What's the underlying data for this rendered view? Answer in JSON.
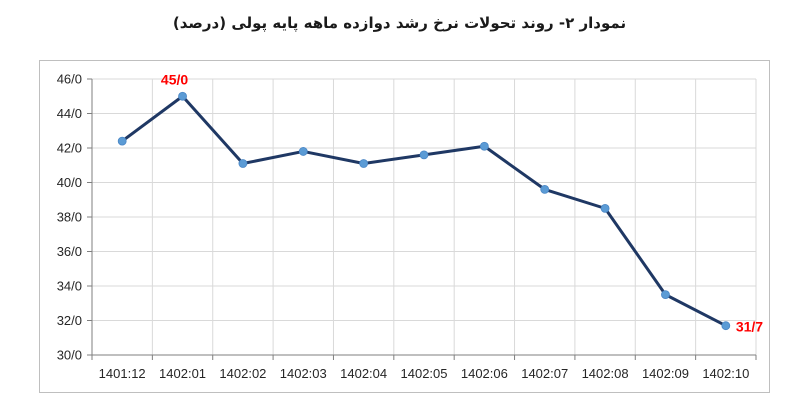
{
  "chart_data": {
    "type": "line",
    "title": "نمودار ۲- روند تحولات نرخ رشد دوازده ماهه پایه پولی (درصد)",
    "xlabel": "",
    "ylabel": "",
    "categories": [
      "1401:12",
      "1402:01",
      "1402:02",
      "1402:03",
      "1402:04",
      "1402:05",
      "1402:06",
      "1402:07",
      "1402:08",
      "1402:09",
      "1402:10"
    ],
    "series": [
      {
        "values": [
          42.4,
          45.0,
          41.1,
          41.8,
          41.1,
          41.6,
          42.1,
          39.6,
          38.5,
          33.5,
          31.7
        ]
      }
    ],
    "ylim": [
      30,
      46
    ],
    "yticks": [
      "30/0",
      "32/0",
      "34/0",
      "36/0",
      "38/0",
      "40/0",
      "42/0",
      "44/0",
      "46/0"
    ],
    "grid": true,
    "annotations": [
      {
        "index": 1,
        "text": "45/0"
      },
      {
        "index": 10,
        "text": "31/7"
      }
    ],
    "colors": {
      "line": "#1f3864",
      "marker": "#5b9bd5",
      "annotation": "#ff0000",
      "grid": "#d9d9d9"
    }
  }
}
